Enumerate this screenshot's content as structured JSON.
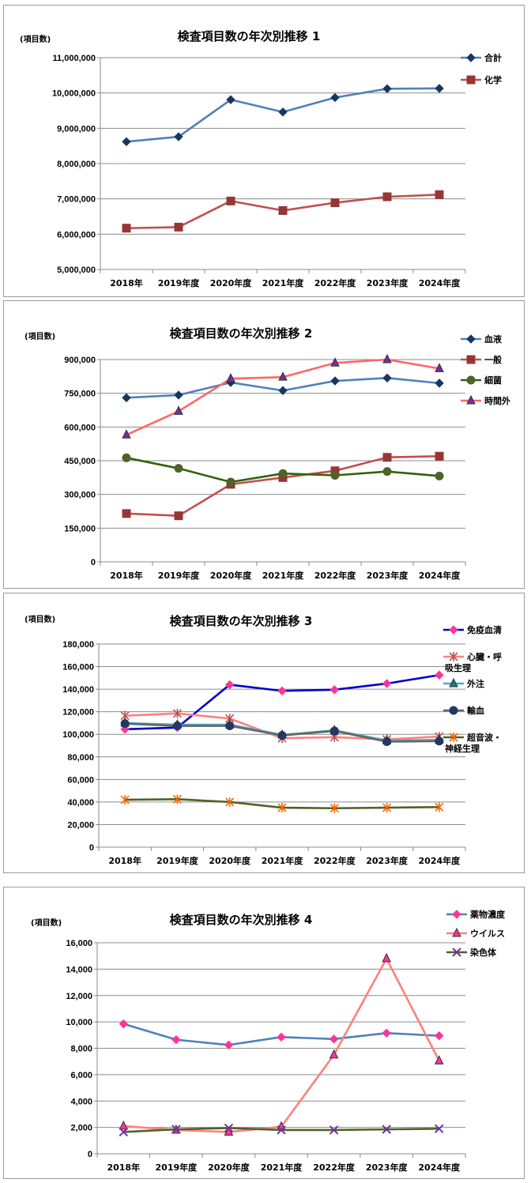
{
  "chart_data": [
    {
      "type": "line",
      "title": "検査項目数の年次別推移 1",
      "ylabel": "(項目数)",
      "categories": [
        "2018年",
        "2019年度",
        "2020年度",
        "2021年度",
        "2022年度",
        "2023年度",
        "2024年度"
      ],
      "ylim": [
        5000000,
        11000000
      ],
      "yticks": [
        5000000,
        6000000,
        7000000,
        8000000,
        9000000,
        10000000,
        11000000
      ],
      "ytick_labels": [
        "5,000,000",
        "6,000,000",
        "7,000,000",
        "8,000,000",
        "9,000,000",
        "10,000,000",
        "11,000,000"
      ],
      "legend_position": "top-right",
      "series": [
        {
          "name": "合計",
          "color": "#4f81bd",
          "marker": "diamond",
          "marker_color": "#17375e",
          "values": [
            8620000,
            8760000,
            9810000,
            9460000,
            9870000,
            10120000,
            10130000
          ]
        },
        {
          "name": "化学",
          "color": "#c0504d",
          "marker": "square",
          "marker_color": "#953735",
          "values": [
            6170000,
            6200000,
            6940000,
            6670000,
            6890000,
            7060000,
            7120000
          ]
        }
      ]
    },
    {
      "type": "line",
      "title": "検査項目数の年次別推移 2",
      "ylabel": "(項目数)",
      "categories": [
        "2018年",
        "2019年度",
        "2020年度",
        "2021年度",
        "2022年度",
        "2023年度",
        "2024年度"
      ],
      "ylim": [
        0,
        900000
      ],
      "yticks": [
        0,
        150000,
        300000,
        450000,
        600000,
        750000,
        900000
      ],
      "ytick_labels": [
        "0",
        "150,000",
        "300,000",
        "450,000",
        "600,000",
        "750,000",
        "900,000"
      ],
      "legend_position": "top-right",
      "series": [
        {
          "name": "血液",
          "color": "#4f81bd",
          "marker": "diamond",
          "marker_color": "#17375e",
          "values": [
            730000,
            742000,
            798000,
            762000,
            805000,
            818000,
            795000
          ]
        },
        {
          "name": "一般",
          "color": "#c0504d",
          "marker": "square",
          "marker_color": "#953735",
          "values": [
            215000,
            205000,
            345000,
            375000,
            405000,
            465000,
            470000
          ]
        },
        {
          "name": "細菌",
          "color": "#31620c",
          "marker": "circle",
          "marker_color": "#4f6228",
          "values": [
            463000,
            416000,
            355000,
            393000,
            385000,
            402000,
            382000
          ]
        },
        {
          "name": "時間外",
          "color": "#ff6666",
          "marker": "triangle",
          "marker_color": "#7030a0",
          "values": [
            565000,
            670000,
            815000,
            822000,
            885000,
            900000,
            860000
          ]
        }
      ]
    },
    {
      "type": "line",
      "title": "検査項目数の年次別推移 3",
      "ylabel": "(項目数)",
      "categories": [
        "2018年",
        "2019年度",
        "2020年度",
        "2021年度",
        "2022年度",
        "2023年度",
        "2024年度"
      ],
      "ylim": [
        0,
        180000
      ],
      "yticks": [
        0,
        20000,
        40000,
        60000,
        80000,
        100000,
        120000,
        140000,
        160000,
        180000
      ],
      "ytick_labels": [
        "0",
        "20,000",
        "40,000",
        "60,000",
        "80,000",
        "100,000",
        "120,000",
        "140,000",
        "160,000",
        "180,000"
      ],
      "legend_position": "top-right",
      "series": [
        {
          "name": "免疫血清",
          "color": "#0000cc",
          "marker": "diamond",
          "marker_color": "#ff3399",
          "values": [
            104500,
            106000,
            144000,
            138500,
            139500,
            145000,
            152500
          ]
        },
        {
          "name": "心臓・呼吸生理",
          "color": "#ff8080",
          "marker": "star",
          "marker_color": "#c0504d",
          "values": [
            116500,
            118500,
            114000,
            96500,
            97500,
            95500,
            98000
          ]
        },
        {
          "name": "外注",
          "color": "#4bacc6",
          "marker": "triangle",
          "marker_color": "#1f7a7a",
          "values": [
            110000,
            108500,
            108500,
            99500,
            103500,
            94500,
            95000
          ]
        },
        {
          "name": "輸血",
          "color": "#666666",
          "marker": "circle",
          "marker_color": "#1f3864",
          "values": [
            109500,
            107500,
            107500,
            99000,
            103000,
            93500,
            94000
          ]
        },
        {
          "name": "超音波・神経生理",
          "color": "#4f6228",
          "marker": "star",
          "marker_color": "#ff6600",
          "values": [
            42000,
            42500,
            40000,
            35000,
            34500,
            35000,
            35500
          ]
        }
      ]
    },
    {
      "type": "line",
      "title": "検査項目数の年次別推移 4",
      "ylabel": "(項目数)",
      "categories": [
        "2018年",
        "2019年度",
        "2020年度",
        "2021年度",
        "2022年度",
        "2023年度",
        "2024年度"
      ],
      "ylim": [
        0,
        16000
      ],
      "yticks": [
        0,
        2000,
        4000,
        6000,
        8000,
        10000,
        12000,
        14000,
        16000
      ],
      "ytick_labels": [
        "0",
        "2,000",
        "4,000",
        "6,000",
        "8,000",
        "10,000",
        "12,000",
        "14,000",
        "16,000"
      ],
      "legend_position": "top-right",
      "series": [
        {
          "name": "薬物濃度",
          "color": "#4f81bd",
          "marker": "diamond",
          "marker_color": "#ff3399",
          "values": [
            9850,
            8650,
            8250,
            8850,
            8700,
            9150,
            8950
          ]
        },
        {
          "name": "ウイルス",
          "color": "#ff8080",
          "marker": "triangle",
          "marker_color": "#ff3399",
          "values": [
            2100,
            1800,
            1650,
            2050,
            7500,
            14800,
            7050
          ]
        },
        {
          "name": "染色体",
          "color": "#4f6228",
          "marker": "x",
          "marker_color": "#7030a0",
          "values": [
            1650,
            1850,
            1950,
            1800,
            1800,
            1850,
            1900
          ]
        }
      ]
    }
  ]
}
